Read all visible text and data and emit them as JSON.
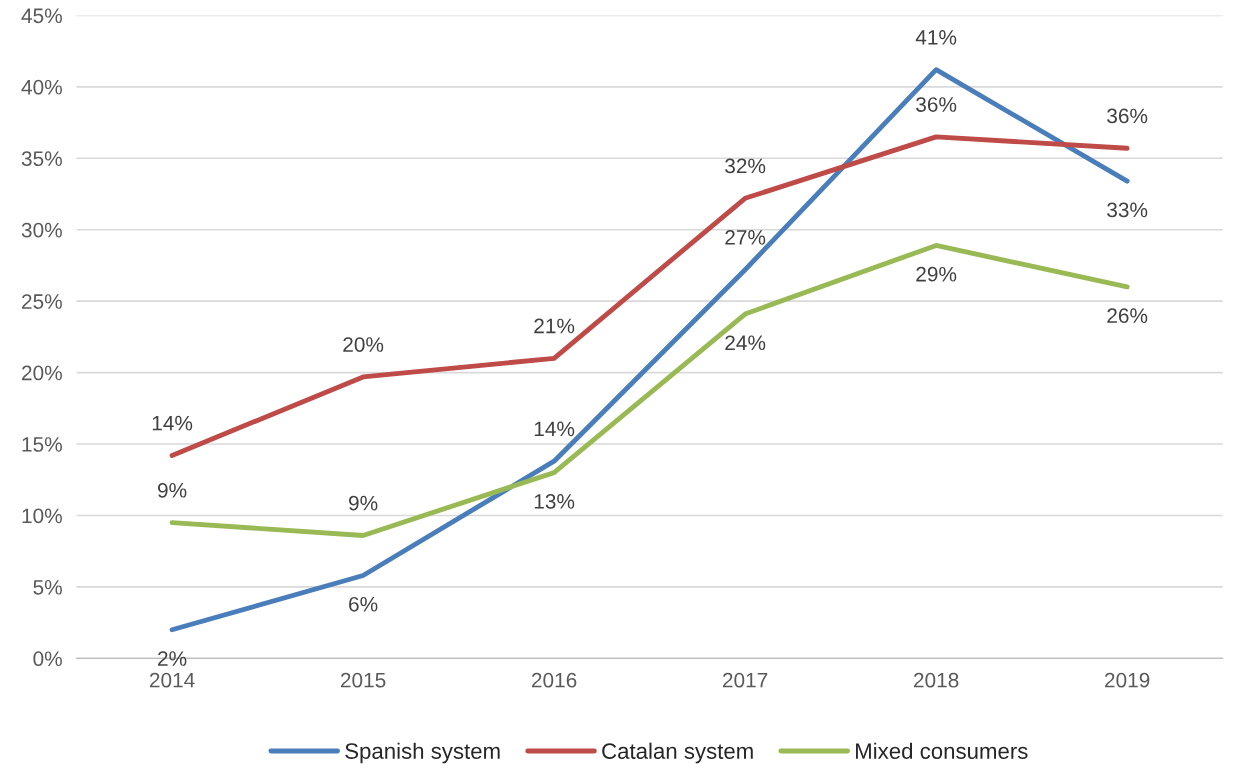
{
  "chart_data": {
    "type": "line",
    "categories": [
      "2014",
      "2015",
      "2016",
      "2017",
      "2018",
      "2019"
    ],
    "series": [
      {
        "name": "Spanish system",
        "color": "#4a7ebb",
        "values": [
          2.0,
          5.8,
          13.8,
          27.2,
          41.2,
          33.4
        ],
        "value_labels": [
          "2%",
          "6%",
          "14%",
          "27%",
          "41%",
          "33%"
        ]
      },
      {
        "name": "Catalan system",
        "color": "#be4b48",
        "values": [
          14.2,
          19.7,
          21.0,
          32.2,
          36.5,
          35.7
        ],
        "value_labels": [
          "14%",
          "20%",
          "21%",
          "32%",
          "36%",
          "36%"
        ]
      },
      {
        "name": "Mixed consumers",
        "color": "#98b954",
        "values": [
          9.5,
          8.6,
          13.0,
          24.1,
          28.9,
          26.0
        ],
        "value_labels": [
          "9%",
          "9%",
          "13%",
          "24%",
          "29%",
          "26%"
        ]
      }
    ],
    "ylim": [
      0,
      45
    ],
    "yticks": [
      {
        "value": 0,
        "label": "0%"
      },
      {
        "value": 5,
        "label": "5%"
      },
      {
        "value": 10,
        "label": "10%"
      },
      {
        "value": 15,
        "label": "15%"
      },
      {
        "value": 20,
        "label": "20%"
      },
      {
        "value": 25,
        "label": "25%"
      },
      {
        "value": 30,
        "label": "30%"
      },
      {
        "value": 35,
        "label": "35%"
      },
      {
        "value": 40,
        "label": "40%"
      },
      {
        "value": 45,
        "label": "45%"
      }
    ],
    "grid": "y",
    "legend": "bottom",
    "marker": "none",
    "line_style": "solid"
  }
}
